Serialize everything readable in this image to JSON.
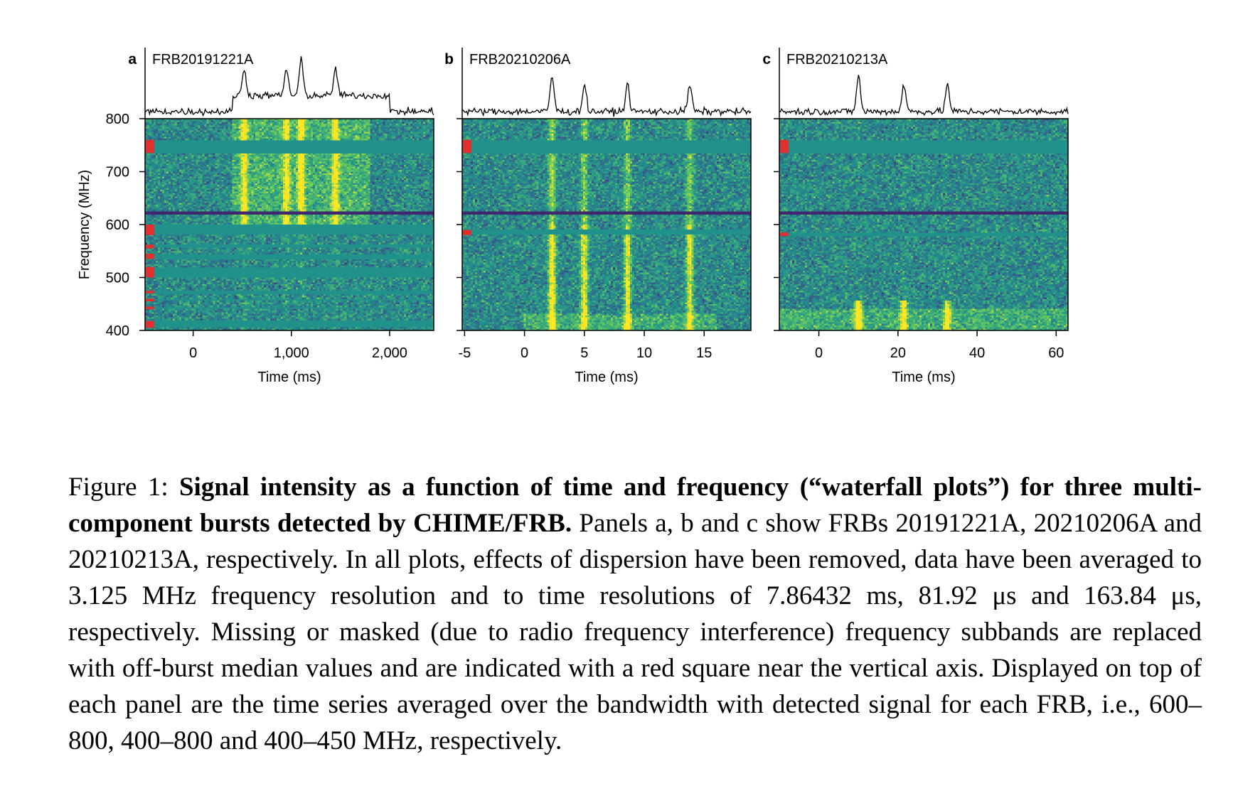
{
  "figure": {
    "panels": [
      {
        "letter": "a",
        "name": "FRB20191221A",
        "xlabel": "Time (ms)",
        "ylabel": "Frequency (MHz)",
        "xlim": [
          -490,
          2450
        ],
        "xticks": [
          0,
          1000,
          2000
        ],
        "xtick_labels": [
          "0",
          "1,000",
          "2,000"
        ],
        "ylim": [
          400,
          800
        ],
        "yticks": [
          400,
          500,
          600,
          700,
          800
        ],
        "ytick_labels": [
          "400",
          "500",
          "600",
          "700",
          "800"
        ],
        "masked_bands_mhz": [
          [
            735,
            760
          ],
          [
            580,
            600
          ],
          [
            555,
            562
          ],
          [
            535,
            545
          ],
          [
            500,
            520
          ],
          [
            470,
            475
          ],
          [
            455,
            460
          ],
          [
            440,
            445
          ],
          [
            405,
            418
          ]
        ],
        "pulse_peaks_ms": [
          1100,
          950,
          520,
          1450
        ]
      },
      {
        "letter": "b",
        "name": "FRB20210206A",
        "xlabel": "Time (ms)",
        "xlim": [
          -5.2,
          18.9
        ],
        "xticks": [
          -5,
          0,
          5,
          10,
          15
        ],
        "xtick_labels": [
          "-5",
          "0",
          "5",
          "10",
          "15"
        ],
        "ylim": [
          400,
          800
        ],
        "yticks": [
          400,
          500,
          600,
          700,
          800
        ],
        "masked_bands_mhz": [
          [
            735,
            760
          ],
          [
            580,
            590
          ]
        ],
        "pulse_peaks_ms": [
          2.3,
          5.0,
          8.6,
          13.8
        ]
      },
      {
        "letter": "c",
        "name": "FRB20210213A",
        "xlabel": "Time (ms)",
        "xlim": [
          -10,
          63
        ],
        "xticks": [
          0,
          20,
          40,
          60
        ],
        "xtick_labels": [
          "0",
          "20",
          "40",
          "60"
        ],
        "ylim": [
          400,
          800
        ],
        "yticks": [
          400,
          500,
          600,
          700,
          800
        ],
        "masked_bands_mhz": [
          [
            735,
            760
          ],
          [
            578,
            585
          ]
        ],
        "pulse_peaks_ms": [
          10,
          21.5,
          32.5
        ]
      }
    ],
    "colors": {
      "median": "#21918c",
      "mask_marker": "#e03030",
      "axis": "#000000",
      "rfi_line": "#3b2a6e"
    }
  },
  "caption": {
    "prefix": "Figure 1: ",
    "bold": "Signal intensity as a function of time and frequency (“waterfall plots”) for three multi-component bursts detected by CHIME/FRB.",
    "body": " Panels a, b and c show FRBs 20191221A, 20210206A and 20210213A, respectively. In all plots, effects of dispersion have been removed, data have been averaged to 3.125 MHz frequency resolution and to time resolutions of 7.86432 ms, 81.92 μs and 163.84 μs, respectively. Missing or masked (due to radio frequency interference) frequency subbands are replaced with off-burst median values and are indicated with a red square near the vertical axis. Displayed on top of each panel are the time series averaged over the bandwidth with detected signal for each FRB, i.e., 600–800, 400–800 and 400–450 MHz, respectively."
  }
}
